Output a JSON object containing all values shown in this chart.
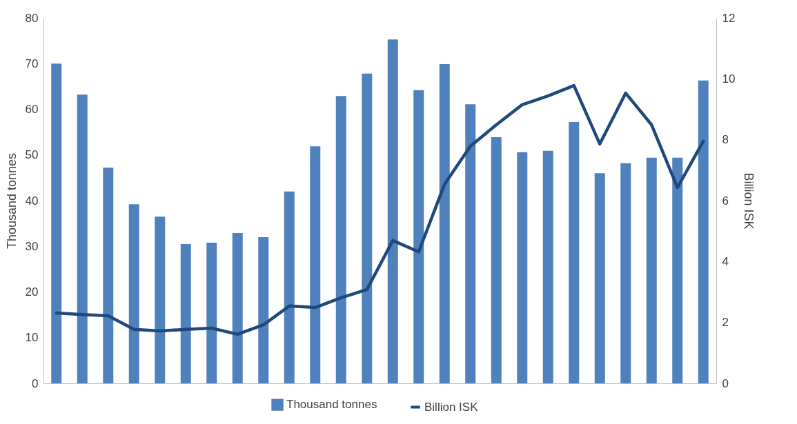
{
  "chart_data": {
    "type": "bar",
    "categories": [
      null,
      null,
      null,
      null,
      null,
      null,
      null,
      null,
      null,
      null,
      null,
      null,
      null,
      null,
      null,
      null,
      null,
      null,
      null,
      null,
      null,
      null,
      null,
      null,
      null,
      null
    ],
    "series": [
      {
        "name": "Thousand tonnes",
        "color": "#4f81bd",
        "values": [
          70,
          63.2,
          47.2,
          39.2,
          36.5,
          30.5,
          30.8,
          32.9,
          32,
          42,
          51.9,
          62.9,
          67.8,
          75.3,
          64.2,
          69.9,
          61.1,
          53.9,
          50.6,
          50.9,
          57.2,
          46,
          48.2,
          49.4,
          49.4,
          66.3
        ]
      },
      {
        "name": "Billion ISK",
        "type": "line",
        "axis": "y2",
        "color": "#1f497d",
        "values": [
          2.31,
          2.26,
          2.22,
          1.77,
          1.72,
          1.77,
          1.81,
          1.61,
          1.92,
          2.54,
          2.49,
          2.81,
          3.08,
          4.69,
          4.32,
          6.54,
          7.79,
          8.49,
          9.15,
          9.44,
          9.78,
          7.86,
          9.53,
          8.49,
          6.43,
          7.95
        ]
      }
    ],
    "ylabel": "Thousand tonnes",
    "y2label": "Billion ISK",
    "ylim": [
      0,
      80
    ],
    "yticks": [
      0,
      10,
      20,
      30,
      40,
      50,
      60,
      70,
      80
    ],
    "y2lim": [
      0,
      12
    ],
    "y2ticks": [
      0,
      2,
      4,
      6,
      8,
      10,
      12
    ],
    "grid": false,
    "legend": "bottom",
    "marker": "none",
    "line_style": "solid"
  }
}
